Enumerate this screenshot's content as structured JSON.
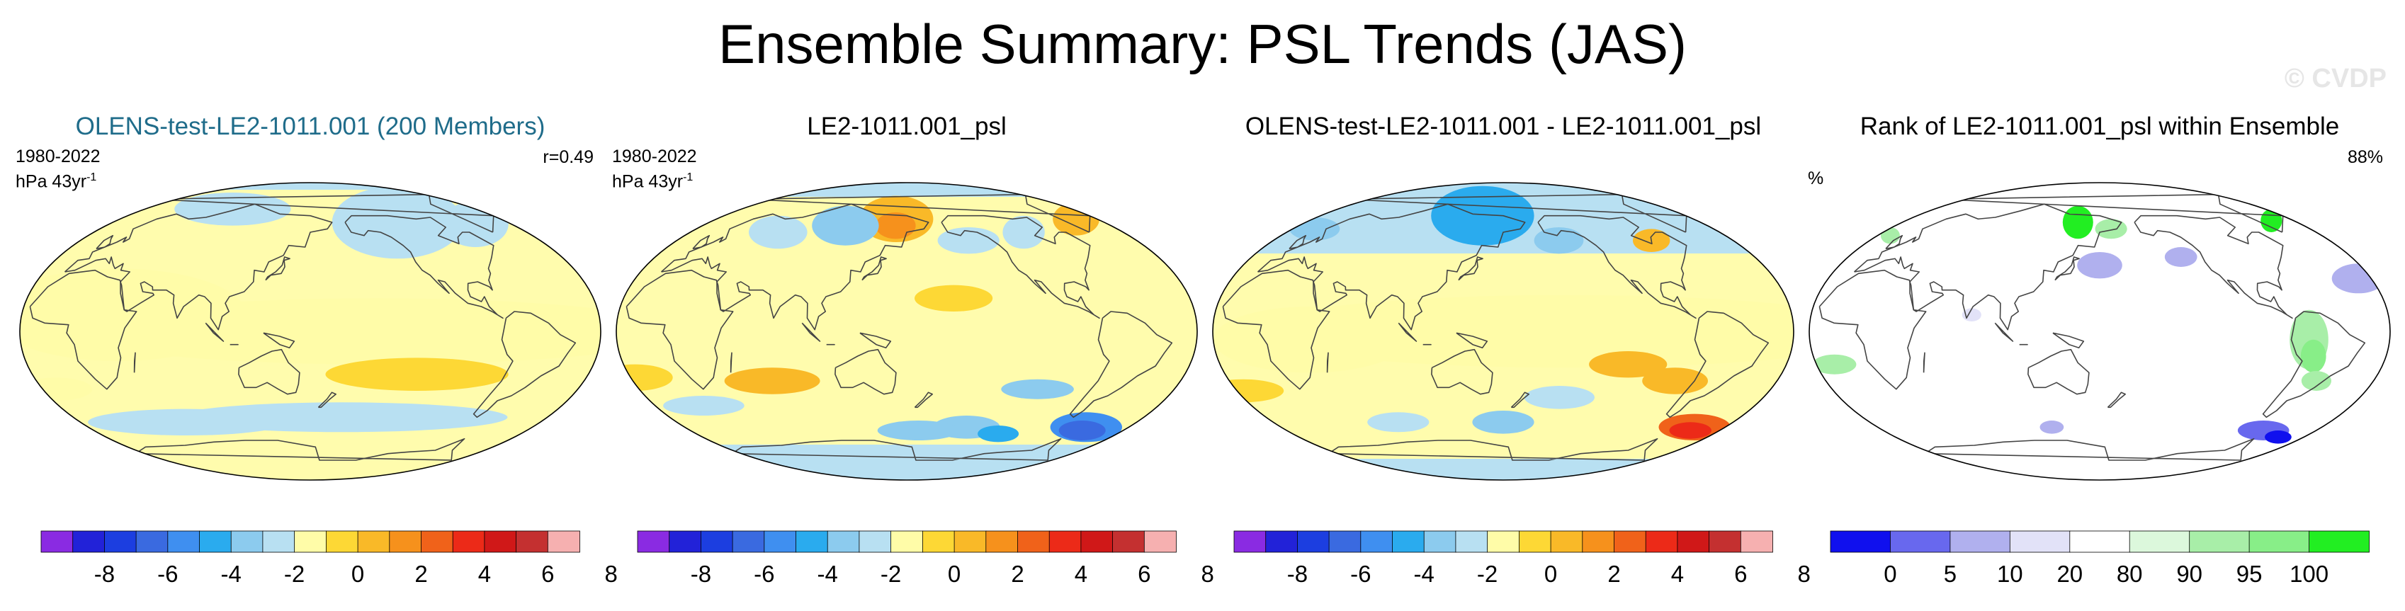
{
  "title": "Ensemble Summary: PSL Trends (JAS)",
  "watermark": "© CVDP",
  "colors": {
    "diverging": [
      "#8a2be2",
      "#2222d8",
      "#1c3ee0",
      "#3a6ae0",
      "#3f8ff0",
      "#2aabee",
      "#8ccbee",
      "#b8e0f2",
      "#fffca8",
      "#fdd835",
      "#f9b928",
      "#f6911c",
      "#f0621a",
      "#ec2a18",
      "#d01818",
      "#c43030",
      "#f6b0b0"
    ],
    "rank": [
      "#1010ee",
      "#6868ee",
      "#b0b0ee",
      "#e2e2f8",
      "#ffffff",
      "#dcf8dc",
      "#a8eea8",
      "#88ee88",
      "#22ee22"
    ],
    "land_outline": "#444444"
  },
  "panels": [
    {
      "title": "OLENS-test-LE2-1011.001 (200 Members)",
      "years": "1980-2022",
      "units": "hPa 43yr",
      "units_sup": "-1",
      "stat": "r=0.49",
      "scheme": "diverging"
    },
    {
      "title": "LE2-1011.001_psl",
      "years": "1980-2022",
      "units": "hPa 43yr",
      "units_sup": "-1",
      "stat": "",
      "scheme": "diverging"
    },
    {
      "title": "OLENS-test-LE2-1011.001 - LE2-1011.001_psl",
      "years": "",
      "units": "",
      "units_sup": "",
      "stat": "",
      "scheme": "diverging"
    },
    {
      "title": "Rank of LE2-1011.001_psl within Ensemble",
      "years": "",
      "units": "%",
      "units_sup": "",
      "stat": "88%",
      "scheme": "rank"
    }
  ],
  "colorbars": {
    "diverging": {
      "ticks": [
        "-8",
        "-6",
        "-4",
        "-2",
        "0",
        "2",
        "4",
        "6",
        "8"
      ]
    },
    "rank": {
      "ticks": [
        "0",
        "5",
        "10",
        "20",
        "80",
        "90",
        "95",
        "100"
      ]
    }
  },
  "chart_data": [
    {
      "type": "heatmap",
      "title": "OLENS-test-LE2-1011.001 (200 Members)",
      "variable": "PSL trend",
      "units": "hPa 43yr-1",
      "period": "1980-2022",
      "pattern_correlation": 0.49,
      "colorbar_levels": [
        -8,
        -7,
        -6,
        -5,
        -4,
        -3,
        -2,
        -1,
        0,
        1,
        2,
        3,
        4,
        5,
        6,
        7,
        8
      ],
      "features": [
        {
          "region": "Arctic / North Pacific",
          "value": -1
        },
        {
          "region": "Southern Ocean (~60S)",
          "value": -1
        },
        {
          "region": "Tropics and subtropics",
          "value": 0.5
        },
        {
          "region": "South Pacific (~30S)",
          "value": 1.5
        }
      ]
    },
    {
      "type": "heatmap",
      "title": "LE2-1011.001_psl",
      "variable": "PSL trend",
      "units": "hPa 43yr-1",
      "period": "1980-2022",
      "colorbar_levels": [
        -8,
        -7,
        -6,
        -5,
        -4,
        -3,
        -2,
        -1,
        0,
        1,
        2,
        3,
        4,
        5,
        6,
        7,
        8
      ],
      "features": [
        {
          "region": "Northeast Asia / Kamchatka",
          "value": 3
        },
        {
          "region": "Greenland",
          "value": 2
        },
        {
          "region": "East Siberia",
          "value": -2
        },
        {
          "region": "Southern Indian Ocean",
          "value": 2
        },
        {
          "region": "Drake Passage / Weddell Sea",
          "value": -6
        }
      ]
    },
    {
      "type": "heatmap",
      "title": "OLENS-test-LE2-1011.001 - LE2-1011.001_psl",
      "variable": "PSL trend difference",
      "units": "hPa 43yr-1",
      "colorbar_levels": [
        -8,
        -7,
        -6,
        -5,
        -4,
        -3,
        -2,
        -1,
        0,
        1,
        2,
        3,
        4,
        5,
        6,
        7,
        8
      ],
      "features": [
        {
          "region": "Northeast Asia / North Pacific",
          "value": -3
        },
        {
          "region": "Tropics",
          "value": 0.5
        },
        {
          "region": "South Pacific",
          "value": 2
        },
        {
          "region": "South Atlantic / Weddell Sea",
          "value": 6
        }
      ]
    },
    {
      "type": "heatmap",
      "title": "Rank of LE2-1011.001_psl within Ensemble",
      "variable": "Rank",
      "units": "%",
      "overall_rank": "88%",
      "colorbar_levels": [
        0,
        5,
        10,
        20,
        80,
        90,
        95,
        100
      ],
      "features": [
        {
          "region": "Northeast Asia",
          "value": 97
        },
        {
          "region": "Greenland / North Atlantic",
          "value": 97
        },
        {
          "region": "North Pacific",
          "value": 3
        },
        {
          "region": "Eastern Pacific",
          "value": 3
        },
        {
          "region": "South America",
          "value": 93
        },
        {
          "region": "Drake Passage",
          "value": 3
        }
      ]
    }
  ]
}
